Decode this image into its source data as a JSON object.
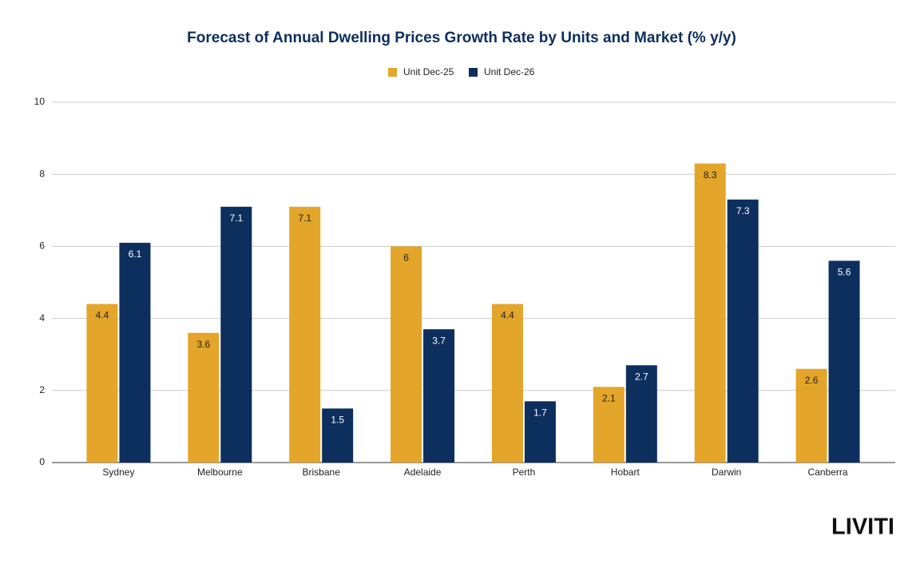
{
  "chart_data": {
    "type": "bar",
    "title": "Forecast of Annual Dwelling Prices Growth Rate by Units and Market (% y/y)",
    "categories": [
      "Sydney",
      "Melbourne",
      "Brisbane",
      "Adelaide",
      "Perth",
      "Hobart",
      "Darwin",
      "Canberra"
    ],
    "series": [
      {
        "name": "Unit Dec-25",
        "color": "#e3a52a",
        "values": [
          4.4,
          3.6,
          7.1,
          6,
          4.4,
          2.1,
          8.3,
          2.6
        ]
      },
      {
        "name": "Unit Dec-26",
        "color": "#0c2f5e",
        "values": [
          6.1,
          7.1,
          1.5,
          3.7,
          1.7,
          2.7,
          7.3,
          5.6
        ]
      }
    ],
    "ylim": [
      0,
      10
    ],
    "yticks": [
      0,
      2,
      4,
      6,
      8,
      10
    ],
    "grid": true,
    "legend": "top",
    "logo": "LIVITI"
  }
}
